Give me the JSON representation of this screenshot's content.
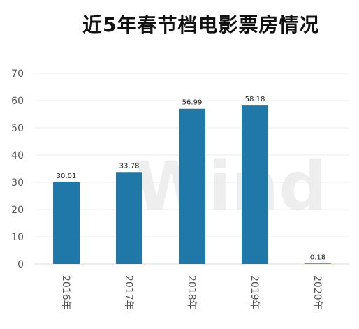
{
  "chart_data": {
    "type": "bar",
    "title": "近5年春节档电影票房情况",
    "categories": [
      "2016年",
      "2017年",
      "2018年",
      "2019年",
      "2020年"
    ],
    "values": [
      30.01,
      33.78,
      56.99,
      58.18,
      0.18
    ],
    "data_labels": [
      "30.01",
      "33.78",
      "56.99",
      "58.18",
      "0.18"
    ],
    "ylim": [
      0,
      70
    ],
    "yticks": [
      0,
      10,
      20,
      30,
      40,
      50,
      60,
      70
    ],
    "grid": true,
    "xlabel": "",
    "ylabel": "",
    "bar_color": "#1f78a8",
    "watermark": "Wind"
  }
}
